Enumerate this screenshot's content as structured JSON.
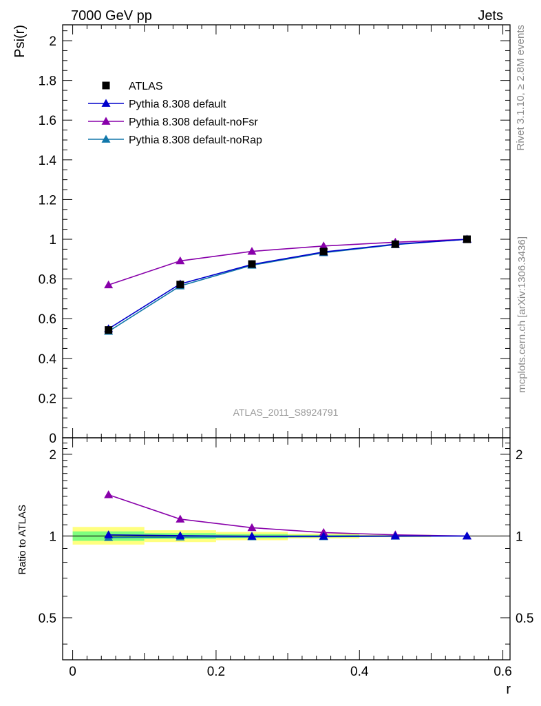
{
  "header": {
    "left_title": "7000 GeV pp",
    "right_title": "Jets"
  },
  "side_text": {
    "rivet": "Rivet 3.1.10, ≥ 2.8M events",
    "mcplots": "mcplots.cern.ch [arXiv:1306.3436]"
  },
  "analysis_label": "ATLAS_2011_S8924791",
  "chart_data": [
    {
      "type": "line",
      "panel": "main",
      "ylabel": "Psi(r)",
      "xlim": [
        -0.014,
        0.61
      ],
      "ylim": [
        0,
        2.08
      ],
      "ytick_labels": [
        "0",
        "0.2",
        "0.4",
        "0.6",
        "0.8",
        "1",
        "1.2",
        "1.4",
        "1.6",
        "1.8",
        "2"
      ],
      "ytick_values": [
        0,
        0.2,
        0.4,
        0.6,
        0.8,
        1.0,
        1.2,
        1.4,
        1.6,
        1.8,
        2.0
      ],
      "x": [
        0.05,
        0.15,
        0.25,
        0.35,
        0.45,
        0.55
      ],
      "legend_position": "top-left",
      "series": [
        {
          "name": "ATLAS",
          "marker": "square",
          "color": "#000000",
          "values": [
            0.543,
            0.772,
            0.875,
            0.938,
            0.975,
            1.0
          ]
        },
        {
          "name": "Pythia 8.308 default",
          "marker": "triangle",
          "color": "#0000cc",
          "values": [
            0.549,
            0.775,
            0.873,
            0.936,
            0.975,
            1.0
          ]
        },
        {
          "name": "Pythia 8.308 default-noFsr",
          "marker": "triangle",
          "color": "#8800aa",
          "values": [
            0.77,
            0.891,
            0.939,
            0.966,
            0.985,
            1.0
          ]
        },
        {
          "name": "Pythia 8.308 default-noRap",
          "marker": "triangle",
          "color": "#1177aa",
          "values": [
            0.536,
            0.765,
            0.869,
            0.932,
            0.973,
            1.0
          ]
        }
      ]
    },
    {
      "type": "line",
      "panel": "ratio",
      "ylabel": "Ratio to ATLAS",
      "xlabel": "r",
      "xlim": [
        -0.014,
        0.61
      ],
      "ylim": [
        0.35,
        2.3
      ],
      "xtick_labels": [
        "0",
        "0.2",
        "0.4",
        "0.6"
      ],
      "xtick_values": [
        0,
        0.2,
        0.4,
        0.6
      ],
      "ytick_labels": [
        "0.5",
        "1",
        "2"
      ],
      "ytick_values": [
        0.5,
        1,
        2
      ],
      "x": [
        0.05,
        0.15,
        0.25,
        0.35,
        0.45,
        0.55
      ],
      "bands": {
        "bin_edges": [
          0,
          0.1,
          0.2,
          0.3,
          0.4,
          0.5,
          0.6
        ],
        "stat_low": [
          0.96,
          0.975,
          0.983,
          0.99,
          0.995,
          0.998
        ],
        "stat_high": [
          1.04,
          1.025,
          1.017,
          1.01,
          1.005,
          1.002
        ],
        "total_low": [
          0.93,
          0.95,
          0.965,
          0.98,
          0.99,
          0.997
        ],
        "total_high": [
          1.08,
          1.05,
          1.035,
          1.02,
          1.01,
          1.003
        ],
        "stat_color": "#7fff7f",
        "total_color": "#ffff7f"
      },
      "series": [
        {
          "name": "Pythia 8.308 default",
          "color": "#0000cc",
          "values": [
            1.01,
            1.003,
            0.998,
            0.998,
            1.0,
            1.0
          ]
        },
        {
          "name": "Pythia 8.308 default-noFsr",
          "color": "#8800aa",
          "values": [
            1.419,
            1.154,
            1.073,
            1.03,
            1.01,
            1.0
          ]
        },
        {
          "name": "Pythia 8.308 default-noRap",
          "color": "#1177aa",
          "values": [
            0.987,
            0.991,
            0.993,
            0.994,
            0.998,
            1.0
          ]
        }
      ]
    }
  ]
}
